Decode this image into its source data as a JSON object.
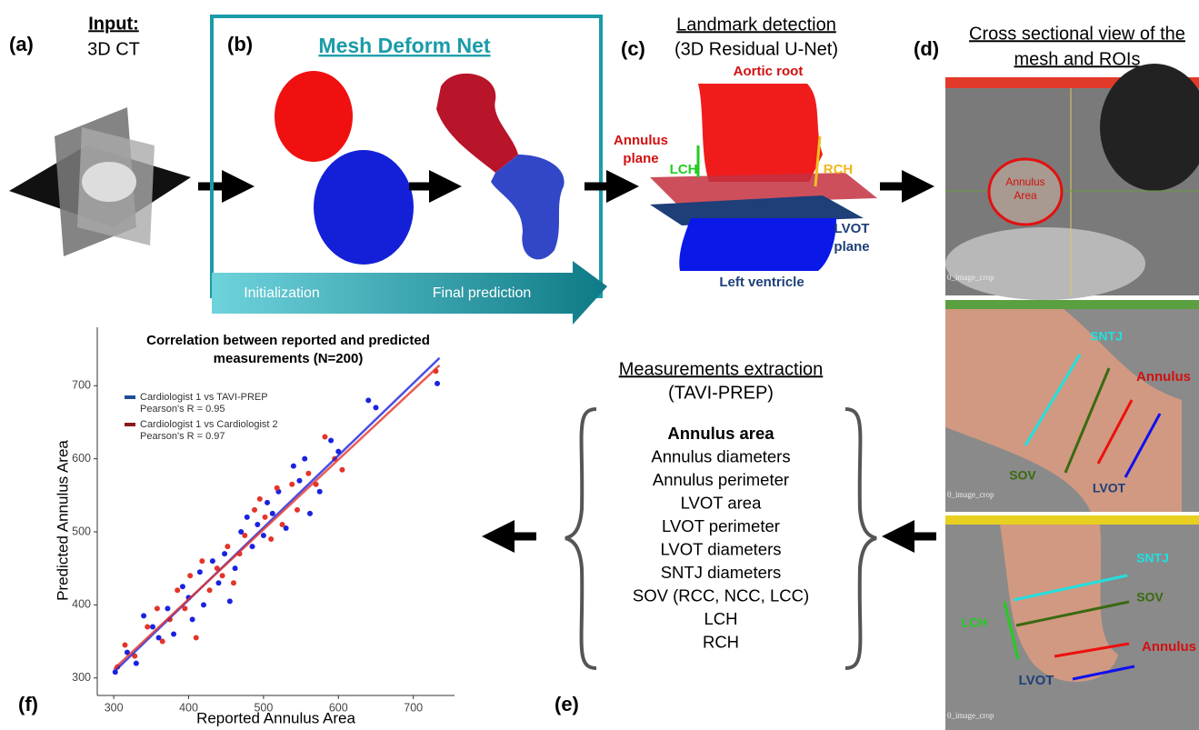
{
  "panel_a": {
    "label": "(a)",
    "title": "Input:",
    "subtitle": "3D CT"
  },
  "panel_b": {
    "label": "(b)",
    "title": "Mesh Deform Net",
    "arrow_start": "Initialization",
    "arrow_end": "Final prediction"
  },
  "panel_c": {
    "label": "(c)",
    "title": "Landmark detection",
    "subtitle": "(3D Residual U-Net)",
    "aortic_root": "Aortic root",
    "annulus_plane": [
      "Annulus",
      "plane"
    ],
    "lch": "LCH",
    "rch": "RCH",
    "lvot_plane": [
      "LVOT",
      "plane"
    ],
    "left_ventricle": "Left ventricle"
  },
  "panel_d": {
    "label": "(d)",
    "title": [
      "Cross sectional view of the",
      "mesh and ROIs"
    ],
    "views": [
      {
        "caption": "0_image_crop",
        "annulus_area": [
          "Annulus",
          "Area"
        ]
      },
      {
        "caption": "0_image_crop",
        "sntj": "SNTJ",
        "annulus": "Annulus",
        "sov": "SOV",
        "lvot": "LVOT"
      },
      {
        "caption": "0_image_crop",
        "sntj": "SNTJ",
        "sov": "SOV",
        "lch": "LCH",
        "annulus": "Annulus",
        "lvot": "LVOT"
      }
    ]
  },
  "panel_e": {
    "label": "(e)",
    "title": "Measurements extraction",
    "subtitle": "(TAVI-PREP)",
    "items": [
      "Annulus area",
      "Annulus diameters",
      "Annulus perimeter",
      "LVOT area",
      "LVOT perimeter",
      "LVOT diameters",
      "SNTJ diameters",
      "SOV (RCC, NCC, LCC)",
      "LCH",
      "RCH"
    ]
  },
  "panel_f": {
    "label": "(f)"
  },
  "chart_data": {
    "type": "scatter",
    "title": [
      "Correlation between reported and predicted",
      "measurements (N=200)"
    ],
    "x_label": "Reported Annulus Area",
    "y_label": "Predicted Annulus Area",
    "xlim": [
      278,
      755
    ],
    "ylim": [
      276,
      780
    ],
    "xticks": [
      300,
      400,
      500,
      600,
      700
    ],
    "yticks": [
      300,
      400,
      500,
      600,
      700
    ],
    "series": [
      {
        "name": "Cardiologist 1 vs TAVI-PREP",
        "stat": "Pearson's R = 0.95",
        "color": "#1a22e0",
        "line_color": "#1f4e99",
        "x": [
          302,
          318,
          330,
          340,
          352,
          360,
          372,
          380,
          392,
          400,
          405,
          415,
          420,
          432,
          440,
          448,
          455,
          462,
          470,
          478,
          485,
          492,
          500,
          505,
          512,
          520,
          530,
          540,
          548,
          555,
          562,
          575,
          590,
          600,
          640,
          650,
          732
        ],
        "values": [
          308,
          335,
          320,
          385,
          370,
          355,
          395,
          360,
          425,
          410,
          380,
          445,
          400,
          460,
          430,
          470,
          405,
          450,
          500,
          520,
          480,
          510,
          495,
          540,
          525,
          555,
          505,
          590,
          570,
          600,
          525,
          555,
          625,
          610,
          680,
          670,
          703
        ],
        "fit_x": [
          300,
          735
        ],
        "fit_y": [
          308,
          738
        ]
      },
      {
        "name": "Cardiologist 1 vs Cardiologist 2",
        "stat": "Pearson's R = 0.97",
        "color": "#e3342a",
        "line_color": "#8b1a1a",
        "x": [
          305,
          315,
          328,
          345,
          358,
          365,
          375,
          385,
          395,
          402,
          410,
          418,
          428,
          438,
          445,
          452,
          460,
          468,
          475,
          488,
          495,
          502,
          510,
          518,
          525,
          538,
          545,
          560,
          570,
          582,
          595,
          605,
          730
        ],
        "values": [
          315,
          345,
          330,
          370,
          395,
          350,
          380,
          420,
          395,
          440,
          355,
          460,
          420,
          450,
          440,
          480,
          430,
          470,
          495,
          530,
          545,
          520,
          490,
          560,
          510,
          565,
          530,
          580,
          565,
          630,
          600,
          585,
          720
        ],
        "fit_x": [
          300,
          735
        ],
        "fit_y": [
          312,
          728
        ]
      }
    ]
  }
}
